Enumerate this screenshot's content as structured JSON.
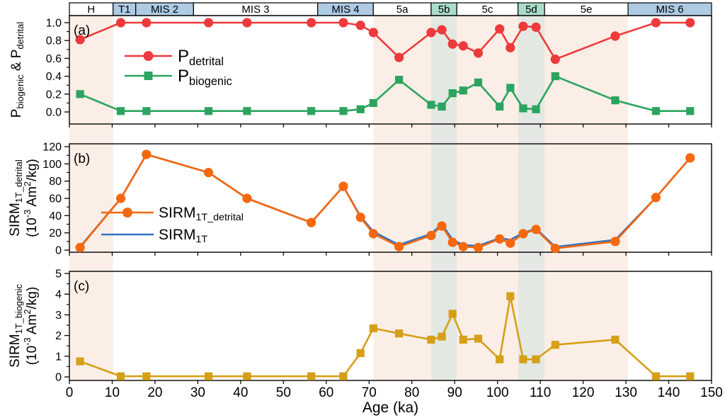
{
  "figure": {
    "x_axis": {
      "label": "Age (ka)",
      "min": 0,
      "max": 150,
      "major_ticks": [
        0,
        10,
        20,
        30,
        40,
        50,
        60,
        70,
        80,
        90,
        100,
        110,
        120,
        130,
        140,
        150
      ]
    },
    "mis_bar": {
      "segments": [
        {
          "label": "H",
          "start": 0,
          "end": 10.2,
          "fill": "#ffffff"
        },
        {
          "label": "T1",
          "start": 10.2,
          "end": 15.5,
          "fill": "#aecbe4"
        },
        {
          "label": "MIS 2",
          "start": 15.5,
          "end": 29,
          "fill": "#aecbe4"
        },
        {
          "label": "MIS 3",
          "start": 29,
          "end": 58,
          "fill": "#ffffff"
        },
        {
          "label": "MIS 4",
          "start": 58,
          "end": 71,
          "fill": "#aecbe4"
        },
        {
          "label": "5a",
          "start": 71,
          "end": 84.5,
          "fill": "#ffffff"
        },
        {
          "label": "5b",
          "start": 84.5,
          "end": 90.5,
          "fill": "#abdcc7"
        },
        {
          "label": "5c",
          "start": 90.5,
          "end": 104.8,
          "fill": "#ffffff"
        },
        {
          "label": "5d",
          "start": 104.8,
          "end": 111,
          "fill": "#abdcc7"
        },
        {
          "label": "5e",
          "start": 111,
          "end": 130.5,
          "fill": "#ffffff"
        },
        {
          "label": "MIS 6",
          "start": 130.5,
          "end": 150,
          "fill": "#aecbe4"
        }
      ]
    },
    "bands": {
      "pink": {
        "color": "#fbeee6",
        "ranges": [
          [
            0,
            10.2
          ],
          [
            71,
            130.5
          ]
        ]
      },
      "grey": {
        "color": "#e4e8e2",
        "ranges": [
          [
            84.5,
            90.5
          ],
          [
            104.8,
            111
          ]
        ]
      }
    },
    "colors": {
      "detrital_red": "#ee3a3c",
      "biogenic_green": "#2ca45f",
      "sirm_detrital_orange": "#f5680e",
      "sirm_total_blue": "#3273c5",
      "sirm_biogenic_gold": "#d5a018",
      "bar_blue": "#aecbe4",
      "bar_teal": "#abdcc7"
    }
  },
  "chart_data": [
    {
      "type": "line",
      "panel": "a",
      "panel_label": "(a)",
      "y_title": [
        "P_{biogenic} & P_{detrital}"
      ],
      "ylim": [
        0,
        1
      ],
      "y_minor_step": 0.1,
      "y_ticks": [
        {
          "v": 0.0,
          "label": "0.0"
        },
        {
          "v": 0.2,
          "label": "0.2"
        },
        {
          "v": 0.4,
          "label": "0.4"
        },
        {
          "v": 0.6,
          "label": "0.6"
        },
        {
          "v": 0.8,
          "label": "0.8"
        },
        {
          "v": 1.0,
          "label": "1.0"
        }
      ],
      "x": [
        2.5,
        12,
        18,
        32.5,
        41.5,
        56.5,
        64,
        68,
        71,
        77,
        84.5,
        87,
        89.5,
        92,
        95.5,
        100.5,
        103,
        106,
        109,
        113.5,
        127.5,
        137,
        145
      ],
      "series": [
        {
          "id": "p-detrital",
          "name": "P_{detrital}",
          "color": "#ee3a3c",
          "marker": "circle",
          "values": [
            0.81,
            1.0,
            1.0,
            1.0,
            1.0,
            1.0,
            1.0,
            0.97,
            0.89,
            0.61,
            0.89,
            0.92,
            0.76,
            0.74,
            0.66,
            0.93,
            0.72,
            0.96,
            0.95,
            0.59,
            0.85,
            1.0,
            1.0
          ]
        },
        {
          "id": "p-biogenic",
          "name": "P_{biogenic}",
          "color": "#2ca45f",
          "marker": "square",
          "values": [
            0.2,
            0.01,
            0.01,
            0.01,
            0.01,
            0.01,
            0.01,
            0.03,
            0.1,
            0.36,
            0.08,
            0.06,
            0.21,
            0.24,
            0.33,
            0.06,
            0.27,
            0.04,
            0.03,
            0.4,
            0.13,
            0.01,
            0.01
          ]
        }
      ],
      "legend": true
    },
    {
      "type": "line",
      "panel": "b",
      "panel_label": "(b)",
      "y_title": [
        "SIRM_{1T_detrital}",
        "(10^{-3} Am^{2}/kg)"
      ],
      "ylim": [
        0,
        120
      ],
      "y_minor_step": 10,
      "y_ticks": [
        {
          "v": 0,
          "label": "0"
        },
        {
          "v": 20,
          "label": "20"
        },
        {
          "v": 40,
          "label": "40"
        },
        {
          "v": 60,
          "label": "60"
        },
        {
          "v": 80,
          "label": "80"
        },
        {
          "v": 100,
          "label": "100"
        },
        {
          "v": 120,
          "label": "120"
        }
      ],
      "x": [
        2.5,
        12,
        18,
        32.5,
        41.5,
        56.5,
        64,
        68,
        71,
        77,
        84.5,
        87,
        89.5,
        92,
        95.5,
        100.5,
        103,
        106,
        109,
        113.5,
        127.5,
        137,
        145
      ],
      "series": [
        {
          "id": "sirm-1t-detrital",
          "name": "SIRM_{1T_detrital}",
          "color": "#f5680e",
          "marker": "circle",
          "values": [
            3,
            60,
            111,
            90,
            60,
            32,
            74,
            38,
            19,
            4,
            17,
            28,
            9,
            4,
            3,
            13,
            8,
            19,
            24,
            2,
            10,
            61,
            107
          ]
        },
        {
          "id": "sirm-1t",
          "name": "SIRM_{1T}",
          "color": "#3273c5",
          "marker": "none",
          "values": [
            3.8,
            60,
            111,
            90,
            60,
            32,
            74,
            39,
            21.4,
            6.1,
            18.8,
            30,
            12,
            5.8,
            4.9,
            13.9,
            11.9,
            19.9,
            24.9,
            3.6,
            11.8,
            61,
            107
          ]
        }
      ],
      "legend": true
    },
    {
      "type": "line",
      "panel": "c",
      "panel_label": "(c)",
      "y_title": [
        "SIRM_{1T_biogenic}",
        "(10^{-3} Am^{2}/kg)"
      ],
      "ylim": [
        0,
        5
      ],
      "y_minor_step": 0.5,
      "y_ticks": [
        {
          "v": 0,
          "label": "0"
        },
        {
          "v": 1,
          "label": "1"
        },
        {
          "v": 2,
          "label": "2"
        },
        {
          "v": 3,
          "label": "3"
        },
        {
          "v": 4,
          "label": "4"
        },
        {
          "v": 5,
          "label": "5"
        }
      ],
      "x": [
        2.5,
        12,
        18,
        32.5,
        41.5,
        56.5,
        64,
        68,
        71,
        77,
        84.5,
        87,
        89.5,
        92,
        95.5,
        100.5,
        103,
        106,
        109,
        113.5,
        127.5,
        137,
        145
      ],
      "series": [
        {
          "id": "sirm-1t-biogenic",
          "name": "SIRM_{1T_biogenic}",
          "color": "#d5a018",
          "marker": "square",
          "values": [
            0.75,
            0.03,
            0.03,
            0.03,
            0.03,
            0.03,
            0.03,
            1.15,
            2.35,
            2.1,
            1.8,
            1.95,
            3.05,
            1.8,
            1.85,
            0.85,
            3.9,
            0.85,
            0.85,
            1.55,
            1.8,
            0.03,
            0.03
          ]
        }
      ],
      "legend": false
    }
  ]
}
